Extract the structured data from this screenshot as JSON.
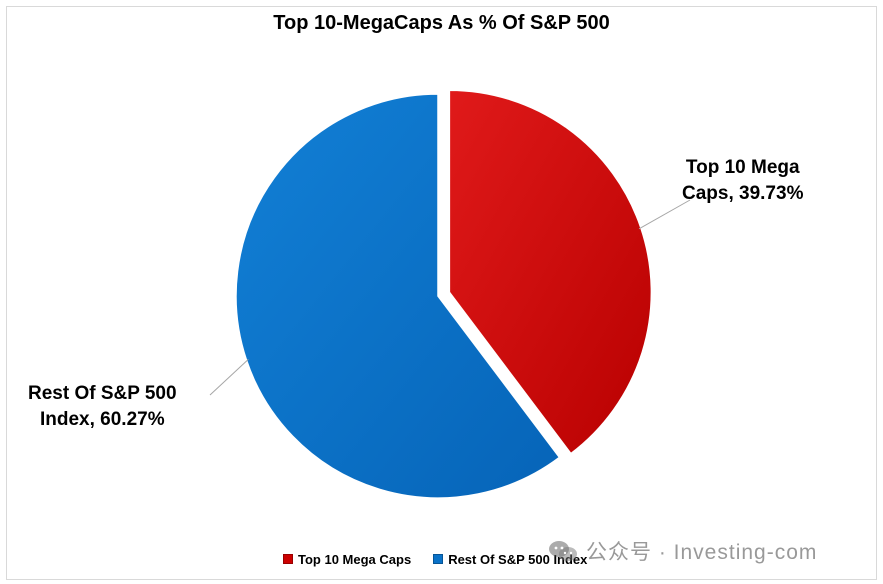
{
  "chart_data": {
    "type": "pie",
    "title": "Top 10-MegaCaps As % Of S&P 500",
    "slices": [
      {
        "name": "Top 10 Mega Caps",
        "value": 39.73,
        "color": "#cc0000",
        "label_lines": [
          "Top 10 Mega",
          "Caps, 39.73%"
        ],
        "exploded": true
      },
      {
        "name": "Rest Of S&P 500 Index",
        "value": 60.27,
        "color": "#0a72c8",
        "label_lines": [
          "Rest Of S&P 500",
          "Index, 60.27%"
        ],
        "exploded": false
      }
    ],
    "legend": {
      "position": "bottom",
      "items": [
        "Top 10 Mega Caps",
        "Rest Of S&P 500 Index"
      ]
    }
  },
  "watermark": {
    "text": "公众号 · Investing-com",
    "icon": "wechat-icon"
  }
}
